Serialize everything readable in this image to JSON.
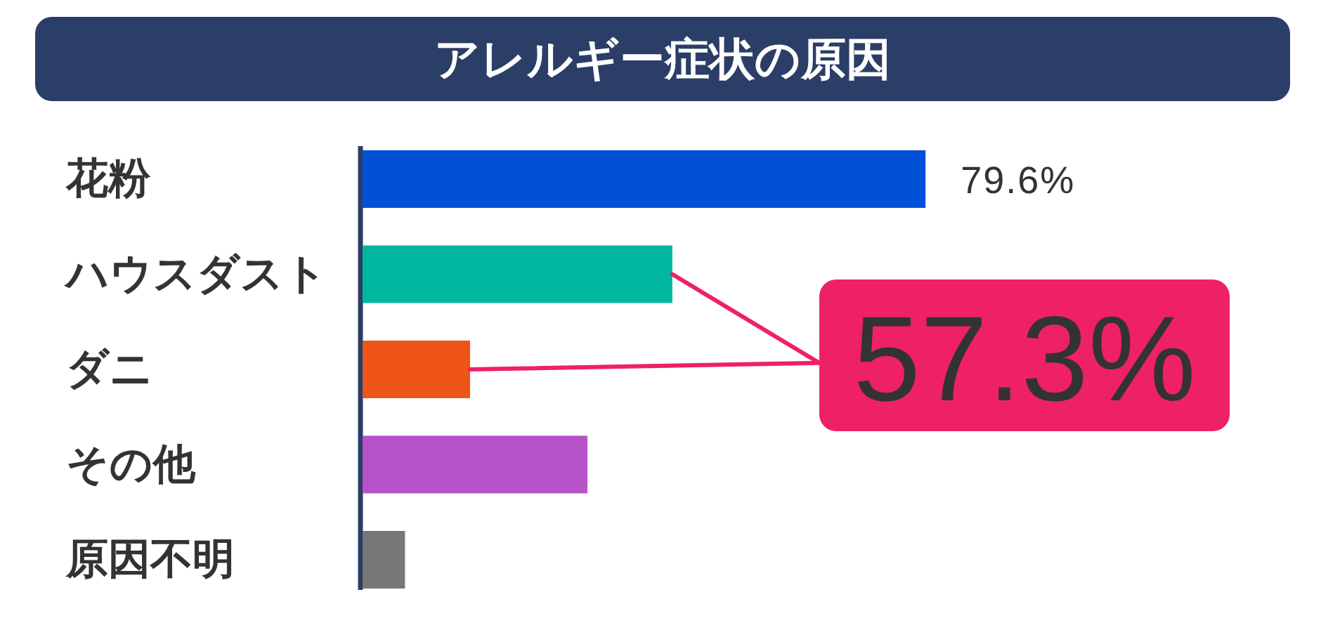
{
  "chart_data": {
    "type": "bar",
    "orientation": "horizontal",
    "title": "アレルギー症状の原因",
    "categories": [
      "花粉",
      "ハウスダスト",
      "ダニ",
      "その他",
      "原因不明"
    ],
    "values": [
      79.6,
      43.8,
      15.2,
      31.8,
      6.0
    ],
    "colors": [
      "#0050d8",
      "#00b8a0",
      "#f05518",
      "#b852c8",
      "#777875"
    ],
    "value_labels": [
      "79.6%",
      null,
      null,
      null,
      null
    ],
    "annotations": [
      "57.3%"
    ]
  }
}
